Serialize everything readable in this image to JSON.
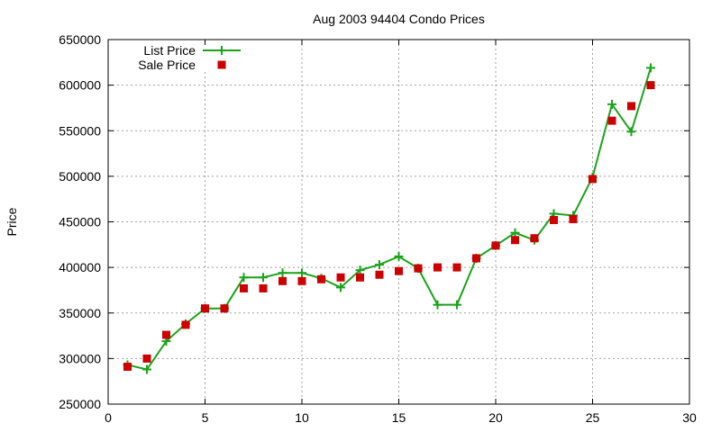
{
  "chart_data": {
    "type": "line",
    "title": "Aug 2003 94404 Condo Prices",
    "xlabel": "",
    "ylabel": "Price",
    "xlim": [
      0,
      30
    ],
    "ylim": [
      250000,
      650000
    ],
    "xticks": [
      0,
      5,
      10,
      15,
      20,
      25,
      30
    ],
    "yticks": [
      250000,
      300000,
      350000,
      400000,
      450000,
      500000,
      550000,
      600000,
      650000
    ],
    "grid": true,
    "legend_position": "top-left",
    "series": [
      {
        "name": "List Price",
        "style": "line-plus",
        "color": "#1aa31a",
        "x": [
          1,
          2,
          3,
          4,
          5,
          6,
          7,
          8,
          9,
          10,
          11,
          12,
          13,
          14,
          15,
          16,
          17,
          18,
          19,
          20,
          21,
          22,
          23,
          24,
          25,
          26,
          27,
          28
        ],
        "y": [
          293000,
          288000,
          319000,
          338000,
          355000,
          355000,
          389000,
          389000,
          394000,
          394000,
          388000,
          378000,
          397000,
          403000,
          412000,
          399000,
          359000,
          359000,
          410000,
          424000,
          438000,
          430000,
          459000,
          457000,
          499000,
          579000,
          549000,
          619000
        ]
      },
      {
        "name": "Sale Price",
        "style": "square",
        "color": "#cc0000",
        "x": [
          1,
          2,
          3,
          4,
          5,
          6,
          7,
          8,
          9,
          10,
          11,
          12,
          13,
          14,
          15,
          16,
          17,
          18,
          19,
          20,
          21,
          22,
          23,
          24,
          25,
          26,
          27,
          28
        ],
        "y": [
          291000,
          300000,
          326000,
          337000,
          355000,
          355000,
          377000,
          377000,
          385000,
          385000,
          387000,
          389000,
          389000,
          392000,
          396000,
          399000,
          400000,
          400000,
          410000,
          424000,
          430000,
          432000,
          452000,
          453000,
          497000,
          561000,
          577000,
          600000
        ]
      }
    ]
  }
}
